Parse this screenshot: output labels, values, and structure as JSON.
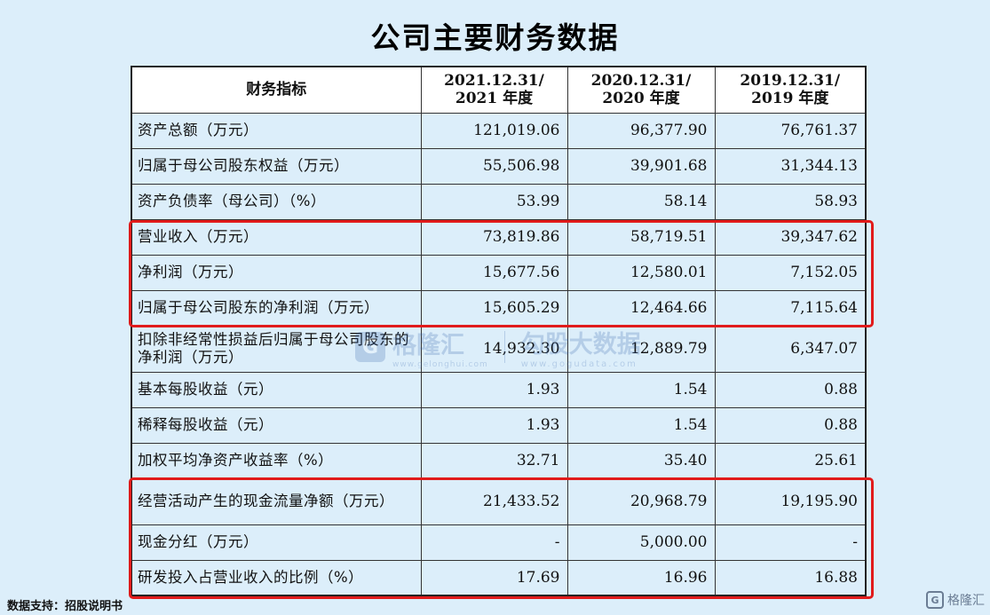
{
  "title": "公司主要财务数据",
  "table": {
    "headers": {
      "indicator": "财务指标",
      "col1_line1": "2021.12.31/",
      "col1_line2": "2021 年度",
      "col2_line1": "2020.12.31/",
      "col2_line2": "2020 年度",
      "col3_line1": "2019.12.31/",
      "col3_line2": "2019 年度"
    },
    "rows": [
      {
        "label": "资产总额（万元）",
        "v2021": "121,019.06",
        "v2020": "96,377.90",
        "v2019": "76,761.37"
      },
      {
        "label": "归属于母公司股东权益（万元）",
        "v2021": "55,506.98",
        "v2020": "39,901.68",
        "v2019": "31,344.13"
      },
      {
        "label": "资产负债率（母公司）（%）",
        "v2021": "53.99",
        "v2020": "58.14",
        "v2019": "58.93"
      },
      {
        "label": "营业收入（万元）",
        "v2021": "73,819.86",
        "v2020": "58,719.51",
        "v2019": "39,347.62"
      },
      {
        "label": "净利润（万元）",
        "v2021": "15,677.56",
        "v2020": "12,580.01",
        "v2019": "7,152.05"
      },
      {
        "label": "归属于母公司股东的净利润（万元）",
        "v2021": "15,605.29",
        "v2020": "12,464.66",
        "v2019": "7,115.64"
      },
      {
        "label": "扣除非经常性损益后归属于母公司股东的净利润（万元）",
        "v2021": "14,932.30",
        "v2020": "12,889.79",
        "v2019": "6,347.07"
      },
      {
        "label": "基本每股收益（元）",
        "v2021": "1.93",
        "v2020": "1.54",
        "v2019": "0.88"
      },
      {
        "label": "稀释每股收益（元）",
        "v2021": "1.93",
        "v2020": "1.54",
        "v2019": "0.88"
      },
      {
        "label": "加权平均净资产收益率（%）",
        "v2021": "32.71",
        "v2020": "35.40",
        "v2019": "25.61"
      },
      {
        "label": "经营活动产生的现金流量净额（万元）",
        "v2021": "21,433.52",
        "v2020": "20,968.79",
        "v2019": "19,195.90"
      },
      {
        "label": "现金分红（万元）",
        "v2021": "-",
        "v2020": "5,000.00",
        "v2019": "-"
      },
      {
        "label": "研发投入占营业收入的比例（%）",
        "v2021": "17.69",
        "v2020": "16.96",
        "v2019": "16.88"
      }
    ]
  },
  "watermark": {
    "brand1": "格隆汇",
    "site1": "www.gelonghui.com",
    "brand2": "勾股大数据",
    "site2": "www.gogudata.com"
  },
  "footer_note": "数据支持：招股说明书",
  "corner_logo": "格隆汇",
  "colors": {
    "background": "#dceefa",
    "highlight": "#e11b1b"
  }
}
